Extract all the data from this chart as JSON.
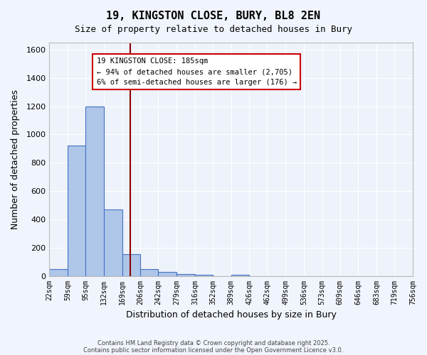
{
  "title_line1": "19, KINGSTON CLOSE, BURY, BL8 2EN",
  "title_line2": "Size of property relative to detached houses in Bury",
  "xlabel": "Distribution of detached houses by size in Bury",
  "ylabel": "Number of detached properties",
  "bar_edges": [
    22,
    59,
    95,
    132,
    169,
    206,
    242,
    279,
    316,
    352,
    389,
    426,
    462,
    499,
    536,
    573,
    609,
    646,
    683,
    719,
    756
  ],
  "bar_heights": [
    50,
    920,
    1200,
    470,
    155,
    50,
    30,
    15,
    10,
    0,
    10,
    0,
    0,
    0,
    0,
    0,
    0,
    0,
    0,
    0
  ],
  "bar_color": "#aec6e8",
  "bar_edgecolor": "#4472c4",
  "vline_x": 185,
  "vline_color": "#8b0000",
  "ylim": [
    0,
    1650
  ],
  "yticks": [
    0,
    200,
    400,
    600,
    800,
    1000,
    1200,
    1400,
    1600
  ],
  "annotation_box_text": "19 KINGSTON CLOSE: 185sqm\n← 94% of detached houses are smaller (2,705)\n6% of semi-detached houses are larger (176) →",
  "bg_color": "#eef2fa",
  "grid_color": "#ffffff",
  "footer_line1": "Contains HM Land Registry data © Crown copyright and database right 2025.",
  "footer_line2": "Contains public sector information licensed under the Open Government Licence v3.0.",
  "tick_labels": [
    "22sqm",
    "59sqm",
    "95sqm",
    "132sqm",
    "169sqm",
    "206sqm",
    "242sqm",
    "279sqm",
    "316sqm",
    "352sqm",
    "389sqm",
    "426sqm",
    "462sqm",
    "499sqm",
    "536sqm",
    "573sqm",
    "609sqm",
    "646sqm",
    "683sqm",
    "719sqm",
    "756sqm"
  ]
}
